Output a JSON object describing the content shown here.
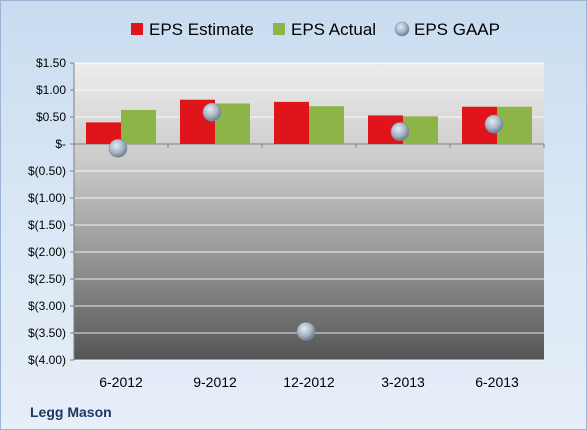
{
  "chart_data": {
    "type": "bar",
    "categories": [
      "6-2012",
      "9-2012",
      "12-2012",
      "3-2013",
      "6-2013"
    ],
    "series": [
      {
        "name": "EPS Estimate",
        "kind": "bar",
        "color": "#e0151c",
        "values": [
          0.4,
          0.82,
          0.78,
          0.53,
          0.69
        ]
      },
      {
        "name": "EPS Actual",
        "kind": "bar",
        "color": "#8cb447",
        "values": [
          0.63,
          0.75,
          0.7,
          0.51,
          0.69
        ]
      },
      {
        "name": "EPS GAAP",
        "kind": "scatter",
        "color": "#a9b6c6",
        "values": [
          -0.08,
          0.59,
          -3.47,
          0.23,
          0.37
        ]
      }
    ],
    "ylim": [
      -4.0,
      1.5
    ],
    "yticks": [
      1.5,
      1.0,
      0.5,
      0,
      -0.5,
      -1.0,
      -1.5,
      -2.0,
      -2.5,
      -3.0,
      -3.5,
      -4.0
    ],
    "ytick_labels": [
      "$1.50",
      "$1.00",
      "$0.50",
      "$-",
      "$(0.50)",
      "$(1.00)",
      "$(1.50)",
      "$(2.00)",
      "$(2.50)",
      "$(3.00)",
      "$(3.50)",
      "$(4.00)"
    ],
    "grid": true,
    "legend_position": "top"
  },
  "footer": {
    "label": "Legg Mason"
  },
  "colors": {
    "plot_top": "#ececec",
    "plot_bottom": "#5a5a5a",
    "grid": "#ffffff"
  }
}
